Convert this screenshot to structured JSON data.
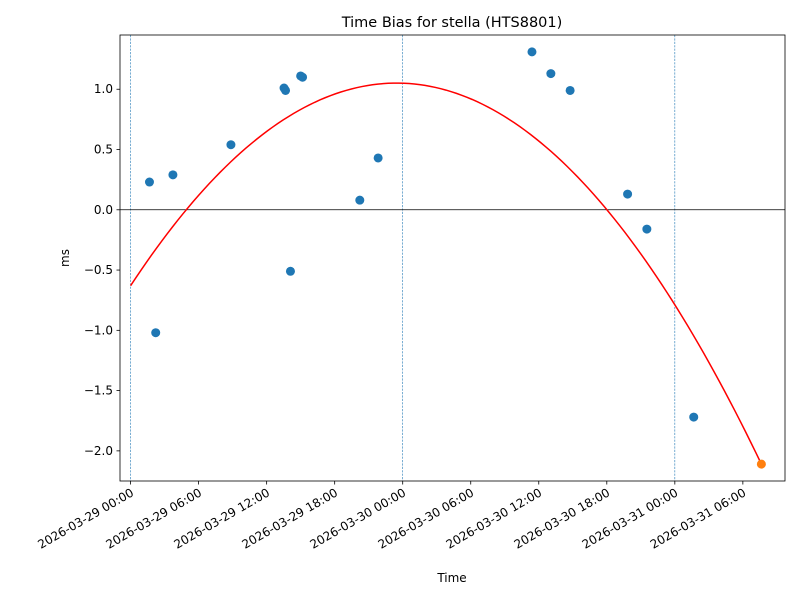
{
  "chart_data": {
    "type": "scatter",
    "title": "Time Bias for stella (HTS8801)",
    "xlabel": "Time",
    "ylabel": "ms",
    "xlim": [
      "2026-03-28 23:04",
      "2026-03-31 09:43"
    ],
    "ylim": [
      -2.25,
      1.45
    ],
    "x_ticks": [
      "2026-03-29 00:00",
      "2026-03-29 06:00",
      "2026-03-29 12:00",
      "2026-03-29 18:00",
      "2026-03-30 00:00",
      "2026-03-30 06:00",
      "2026-03-30 12:00",
      "2026-03-30 18:00",
      "2026-03-31 00:00",
      "2026-03-31 06:00"
    ],
    "y_ticks": [
      1.0,
      0.5,
      0.0,
      -0.5,
      -1.0,
      -1.5,
      -2.0
    ],
    "y_tick_labels": [
      "1.0",
      "0.5",
      "0.0",
      "−0.5",
      "−1.0",
      "−1.5",
      "−2.0"
    ],
    "vertical_lines": [
      "2026-03-29 00:00",
      "2026-03-30 00:00",
      "2026-03-31 00:00"
    ],
    "horizontal_lines": [
      0.0
    ],
    "grid": false,
    "series": [
      {
        "type": "scatter",
        "color": "#1f77b4",
        "points": [
          {
            "x": "2026-03-29 01:40",
            "y": 0.23
          },
          {
            "x": "2026-03-29 02:13",
            "y": -1.02
          },
          {
            "x": "2026-03-29 03:44",
            "y": 0.29
          },
          {
            "x": "2026-03-29 08:51",
            "y": 0.54
          },
          {
            "x": "2026-03-29 13:32",
            "y": 1.01
          },
          {
            "x": "2026-03-29 13:40",
            "y": 0.99
          },
          {
            "x": "2026-03-29 14:06",
            "y": -0.51
          },
          {
            "x": "2026-03-29 15:00",
            "y": 1.11
          },
          {
            "x": "2026-03-29 15:10",
            "y": 1.1
          },
          {
            "x": "2026-03-29 20:13",
            "y": 0.08
          },
          {
            "x": "2026-03-29 21:50",
            "y": 0.43
          },
          {
            "x": "2026-03-30 11:24",
            "y": 1.31
          },
          {
            "x": "2026-03-30 13:04",
            "y": 1.13
          },
          {
            "x": "2026-03-30 14:46",
            "y": 0.99
          },
          {
            "x": "2026-03-30 19:50",
            "y": 0.13
          },
          {
            "x": "2026-03-30 21:32",
            "y": -0.16
          },
          {
            "x": "2026-03-31 01:40",
            "y": -1.72
          }
        ]
      },
      {
        "type": "scatter",
        "color": "#ff7f0e",
        "points": [
          {
            "x": "2026-03-31 07:38",
            "y": -2.11
          }
        ]
      },
      {
        "type": "line",
        "color": "#ff0000",
        "fit": "quadratic",
        "points": [
          {
            "x": "2026-03-29 00:00",
            "y": -0.63
          },
          {
            "x": "2026-03-30 00:00",
            "y": 1.05
          },
          {
            "x": "2026-03-31 07:38",
            "y": -2.11
          }
        ]
      }
    ]
  }
}
